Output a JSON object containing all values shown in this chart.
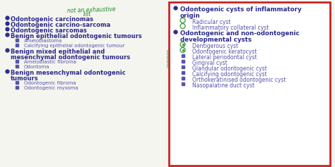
{
  "bg_color": "#f5f5f0",
  "left_panel": {
    "handwritten_top": "not an exhaustive\n         list",
    "items": [
      {
        "level": 1,
        "text": "Odontogenic carcinomas"
      },
      {
        "level": 1,
        "text": "Odontogenic carcino-sarcoma"
      },
      {
        "level": 1,
        "text": "Odontogenic sarcomas"
      },
      {
        "level": 1,
        "text": "Benign epithelial odontogenic tumours"
      },
      {
        "level": 2,
        "text": "Ameloblastoma"
      },
      {
        "level": 2,
        "text": "Calcifying epithelial odontogenic tumour"
      },
      {
        "level": 1,
        "text": "Benign mixed epithelial and\nmesenchymal odontogenic tumours"
      },
      {
        "level": 2,
        "text": "Ameloblastic fibroma"
      },
      {
        "level": 2,
        "text": "Odontoma"
      },
      {
        "level": 1,
        "text": "Benign mesenchymal odontogenic\ntumours"
      },
      {
        "level": 2,
        "text": "Odontogenic fibroma"
      },
      {
        "level": 2,
        "text": "Odontogenic myxoma"
      }
    ]
  },
  "right_panel": {
    "border_color": "#cc2222",
    "items": [
      {
        "level": 1,
        "text": "Odontogenic cysts of inflammatory\norigin",
        "marker": "bullet"
      },
      {
        "level": 2,
        "text": "Radicular cyst",
        "marker": "circle_green"
      },
      {
        "level": 2,
        "text": "Inflammatory collateral cyst",
        "marker": "circle_green"
      },
      {
        "level": 1,
        "text": "Odontogenic and non-odontogenic\ndevelopmental cysts",
        "marker": "bullet"
      },
      {
        "level": 2,
        "text": "Dentigerous cyst",
        "marker": "circle_eye"
      },
      {
        "level": 2,
        "text": "Odontogenic keratocyst",
        "marker": "circle_eye"
      },
      {
        "level": 2,
        "text": "Lateral periodontal cyst",
        "marker": "bullet"
      },
      {
        "level": 2,
        "text": "Gingival cyst",
        "marker": "bullet"
      },
      {
        "level": 2,
        "text": "Glandular odontogenic cyst",
        "marker": "bullet"
      },
      {
        "level": 2,
        "text": "Calcifying odontogenic cyst",
        "marker": "bullet"
      },
      {
        "level": 2,
        "text": "Orthokeratinised odontogenic cyst",
        "marker": "bullet"
      },
      {
        "level": 2,
        "text": "Nasopalatine duct cyst",
        "marker": "bullet"
      }
    ]
  },
  "text_color_main": "#2b2b8c",
  "text_color_sub": "#5555aa",
  "handwritten_color": "#228b22",
  "annotation_color": "#228b22"
}
